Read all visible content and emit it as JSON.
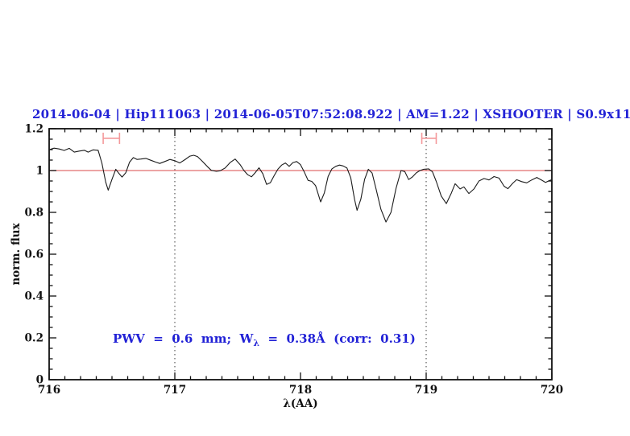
{
  "colors": {
    "text_blue": "#2121d6",
    "reference_red": "#e06e6e",
    "marker_pink": "#f4999b",
    "curve_black": "#1b1b1b",
    "dotted_gray": "#3a3a3a"
  },
  "chart_data": {
    "type": "line",
    "title": "2014-06-04 | Hip111063 | 2014-06-05T07:52:08.922 | AM=1.22 | XSHOOTER | S0.9x11",
    "xlabel": "λ(AA)",
    "ylabel": "norm. flux",
    "xlim": [
      716,
      720
    ],
    "ylim": [
      0,
      1.2
    ],
    "x_major_ticks": [
      716,
      717,
      718,
      719,
      720
    ],
    "x_tick_labels": [
      "716",
      "717",
      "718",
      "719",
      "720"
    ],
    "x_minor_step": 0.125,
    "y_major_ticks": [
      0,
      0.2,
      0.4,
      0.6,
      0.8,
      1,
      1.2
    ],
    "y_tick_labels": [
      "0",
      "0.2",
      "0.4",
      "0.6",
      "0.8",
      "1",
      "1.2"
    ],
    "y_minor_step": 0.05,
    "grid": false,
    "legend": "none",
    "reference_line_y": 1.0,
    "dotted_vlines": [
      717,
      719
    ],
    "ew_markers": [
      {
        "x1": 716.43,
        "x2": 716.56,
        "y": 1.154,
        "cap_half": 0.027
      },
      {
        "x1": 718.965,
        "x2": 719.08,
        "y": 1.154,
        "cap_half": 0.027
      }
    ],
    "annotation": {
      "pre": "PWV  =  0.6  mm;  W",
      "sub": "λ",
      "post": "  =  0.38Å  (corr:  0.31)"
    },
    "series": [
      {
        "name": "spectrum",
        "points": [
          [
            716.0,
            1.1
          ],
          [
            716.04,
            1.107
          ],
          [
            716.08,
            1.103
          ],
          [
            716.12,
            1.096
          ],
          [
            716.16,
            1.106
          ],
          [
            716.2,
            1.088
          ],
          [
            716.24,
            1.093
          ],
          [
            716.28,
            1.097
          ],
          [
            716.31,
            1.088
          ],
          [
            716.35,
            1.099
          ],
          [
            716.39,
            1.097
          ],
          [
            716.42,
            1.035
          ],
          [
            716.45,
            0.945
          ],
          [
            716.47,
            0.906
          ],
          [
            716.5,
            0.958
          ],
          [
            716.53,
            1.006
          ],
          [
            716.55,
            0.99
          ],
          [
            716.58,
            0.969
          ],
          [
            716.61,
            0.99
          ],
          [
            716.64,
            1.04
          ],
          [
            716.67,
            1.062
          ],
          [
            716.7,
            1.053
          ],
          [
            716.73,
            1.055
          ],
          [
            716.77,
            1.058
          ],
          [
            716.81,
            1.049
          ],
          [
            716.85,
            1.04
          ],
          [
            716.88,
            1.034
          ],
          [
            716.92,
            1.043
          ],
          [
            716.96,
            1.053
          ],
          [
            717.0,
            1.047
          ],
          [
            717.04,
            1.036
          ],
          [
            717.08,
            1.052
          ],
          [
            717.12,
            1.069
          ],
          [
            717.15,
            1.073
          ],
          [
            717.18,
            1.067
          ],
          [
            717.22,
            1.044
          ],
          [
            717.26,
            1.018
          ],
          [
            717.29,
            1.001
          ],
          [
            717.33,
            0.996
          ],
          [
            717.36,
            0.999
          ],
          [
            717.4,
            1.012
          ],
          [
            717.44,
            1.038
          ],
          [
            717.48,
            1.055
          ],
          [
            717.52,
            1.028
          ],
          [
            717.55,
            1.0
          ],
          [
            717.58,
            0.98
          ],
          [
            717.61,
            0.97
          ],
          [
            717.64,
            0.99
          ],
          [
            717.67,
            1.013
          ],
          [
            717.7,
            0.985
          ],
          [
            717.73,
            0.934
          ],
          [
            717.76,
            0.942
          ],
          [
            717.79,
            0.975
          ],
          [
            717.82,
            1.006
          ],
          [
            717.85,
            1.026
          ],
          [
            717.88,
            1.036
          ],
          [
            717.91,
            1.02
          ],
          [
            717.94,
            1.038
          ],
          [
            717.97,
            1.043
          ],
          [
            718.0,
            1.028
          ],
          [
            718.03,
            0.993
          ],
          [
            718.06,
            0.953
          ],
          [
            718.09,
            0.948
          ],
          [
            718.12,
            0.928
          ],
          [
            718.16,
            0.85
          ],
          [
            718.19,
            0.893
          ],
          [
            718.22,
            0.972
          ],
          [
            718.25,
            1.008
          ],
          [
            718.28,
            1.02
          ],
          [
            718.31,
            1.026
          ],
          [
            718.34,
            1.022
          ],
          [
            718.37,
            1.012
          ],
          [
            718.4,
            0.965
          ],
          [
            718.43,
            0.862
          ],
          [
            718.45,
            0.81
          ],
          [
            718.48,
            0.863
          ],
          [
            718.51,
            0.958
          ],
          [
            718.54,
            1.006
          ],
          [
            718.57,
            0.988
          ],
          [
            718.6,
            0.915
          ],
          [
            718.64,
            0.815
          ],
          [
            718.68,
            0.754
          ],
          [
            718.72,
            0.8
          ],
          [
            718.76,
            0.915
          ],
          [
            718.8,
            1.0
          ],
          [
            718.83,
            0.995
          ],
          [
            718.86,
            0.957
          ],
          [
            718.89,
            0.969
          ],
          [
            718.92,
            0.988
          ],
          [
            718.95,
            1.0
          ],
          [
            718.98,
            1.006
          ],
          [
            719.02,
            1.008
          ],
          [
            719.05,
            0.994
          ],
          [
            719.08,
            0.948
          ],
          [
            719.12,
            0.878
          ],
          [
            719.16,
            0.842
          ],
          [
            719.2,
            0.892
          ],
          [
            719.23,
            0.937
          ],
          [
            719.27,
            0.912
          ],
          [
            719.3,
            0.922
          ],
          [
            719.34,
            0.89
          ],
          [
            719.38,
            0.912
          ],
          [
            719.42,
            0.95
          ],
          [
            719.46,
            0.962
          ],
          [
            719.5,
            0.955
          ],
          [
            719.54,
            0.971
          ],
          [
            719.58,
            0.964
          ],
          [
            719.62,
            0.925
          ],
          [
            719.65,
            0.913
          ],
          [
            719.69,
            0.94
          ],
          [
            719.72,
            0.956
          ],
          [
            719.76,
            0.947
          ],
          [
            719.8,
            0.941
          ],
          [
            719.84,
            0.955
          ],
          [
            719.88,
            0.967
          ],
          [
            719.92,
            0.954
          ],
          [
            719.95,
            0.943
          ],
          [
            719.98,
            0.952
          ],
          [
            720.0,
            0.957
          ]
        ]
      }
    ]
  }
}
